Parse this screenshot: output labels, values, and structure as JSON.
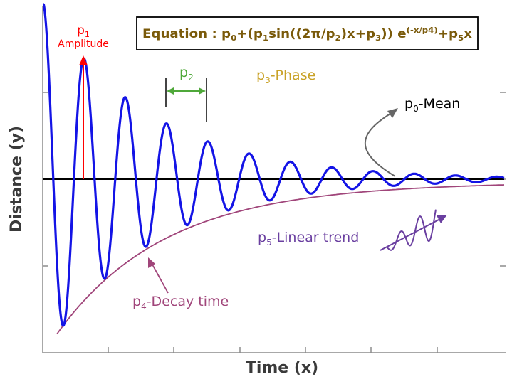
{
  "axes": {
    "xlabel": "Time (x)",
    "ylabel": "Distance (y)"
  },
  "equation": {
    "prefix": "Equation : p",
    "s0": "0",
    "m1": "+(p",
    "s1": "1",
    "m2": "sin((2π/p",
    "s2": "2",
    "m3": ")x+p",
    "s3": "3",
    "m4": ")) e",
    "sup": "(-x/p4)",
    "m5": "+p",
    "s5": "5",
    "m6": "x"
  },
  "annotations": {
    "amplitude": {
      "p": "p",
      "sub": "1",
      "text": "Amplitude"
    },
    "period": {
      "p": "p",
      "sub": "2"
    },
    "phase": {
      "p": "p",
      "sub": "3",
      "text": "-Phase"
    },
    "mean": {
      "p": "p",
      "sub": "0",
      "text": "-Mean"
    },
    "linear": {
      "p": "p",
      "sub": "5",
      "text": "-Linear trend"
    },
    "decay": {
      "p": "p",
      "sub": "4",
      "text": "-Decay time"
    }
  },
  "colors": {
    "wave": "#1414e6",
    "mean_line": "#000000",
    "envelope": "#a0457a",
    "amplitude": "#ff0000",
    "period": "#4fa83a",
    "phase": "#c9a227",
    "mean_arrow": "#666666",
    "linear": "#6a3fa0",
    "decay": "#a0457a",
    "equation_border": "#000000",
    "axis": "#8c8c8c"
  }
}
